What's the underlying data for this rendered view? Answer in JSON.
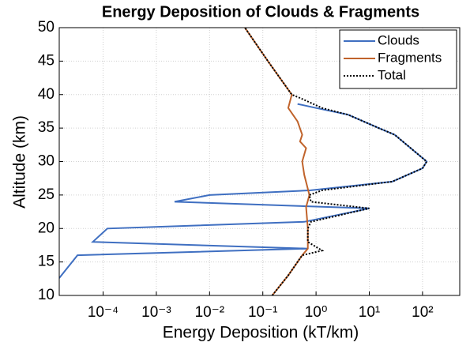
{
  "chart_data": {
    "type": "line",
    "title": "Energy Deposition of Clouds & Fragments",
    "xlabel": "Energy Deposition (kT/km)",
    "ylabel": "Altitude (km)",
    "xscale": "log",
    "xlim": [
      1.5e-05,
      500
    ],
    "ylim": [
      10,
      50
    ],
    "xticks": [
      {
        "value": 0.0001,
        "label": "10⁻⁴"
      },
      {
        "value": 0.001,
        "label": "10⁻³"
      },
      {
        "value": 0.01,
        "label": "10⁻²"
      },
      {
        "value": 0.1,
        "label": "10⁻¹"
      },
      {
        "value": 1,
        "label": "10⁰"
      },
      {
        "value": 10,
        "label": "10¹"
      },
      {
        "value": 100,
        "label": "10²"
      }
    ],
    "yticks": [
      10,
      15,
      20,
      25,
      30,
      35,
      40,
      45,
      50
    ],
    "grid": true,
    "legend": "upper right",
    "series": [
      {
        "name": "Clouds",
        "color": "#3f6fc1",
        "dash": "solid",
        "x": [
          1.5e-05,
          3.3e-05,
          0.7,
          6.4e-05,
          0.00012,
          0.6,
          10,
          0.0022,
          0.01,
          0.8,
          27,
          100,
          120,
          60,
          30,
          15,
          4,
          1,
          0.45
        ],
        "values": [
          12.6,
          16,
          17,
          18,
          20,
          21,
          23,
          24,
          25,
          25.7,
          27,
          29,
          30,
          32,
          34,
          35,
          37,
          38,
          38.6
        ]
      },
      {
        "name": "Fragments",
        "color": "#c0632b",
        "dash": "solid",
        "x": [
          0.15,
          0.3,
          0.55,
          0.7,
          0.7,
          0.65,
          0.75,
          0.6,
          0.55,
          0.65,
          0.5,
          0.55,
          0.45,
          0.3,
          0.35,
          0.125,
          0.046
        ],
        "values": [
          10,
          13,
          16,
          17,
          20,
          23.2,
          25,
          28,
          30,
          32,
          33,
          34,
          36,
          38,
          40,
          45,
          50
        ]
      },
      {
        "name": "Total",
        "color": "#000000",
        "dash": "dotted",
        "x": [
          0.15,
          0.3,
          0.55,
          1.3,
          0.7,
          0.7,
          0.8,
          10,
          0.8,
          0.75,
          1.3,
          27,
          100,
          120,
          60,
          30,
          15,
          4,
          1.3,
          0.5,
          0.35,
          0.125,
          0.046
        ],
        "values": [
          10,
          13,
          16,
          16.7,
          18,
          20,
          21,
          23,
          24,
          25,
          25.7,
          27,
          29,
          30,
          32,
          34,
          35,
          37,
          38,
          39.5,
          40,
          45,
          50
        ]
      }
    ]
  }
}
